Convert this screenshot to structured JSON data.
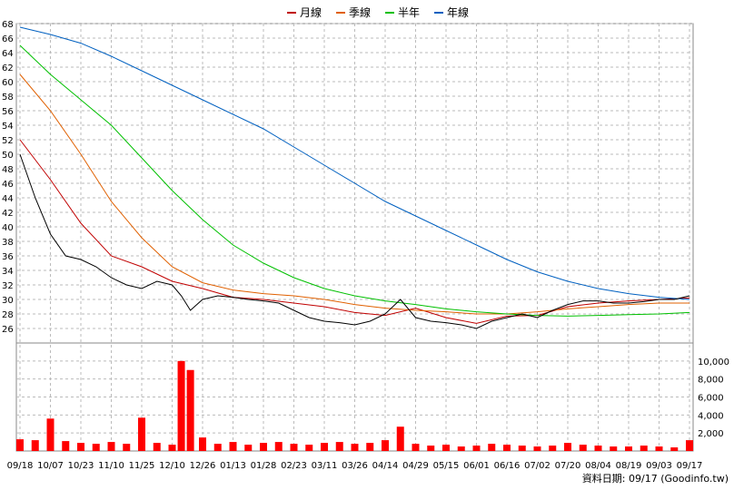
{
  "chart_data": {
    "type": "line",
    "legend": {
      "placement": "top-center",
      "items": [
        {
          "label": "月線",
          "color": "#c00000"
        },
        {
          "label": "季線",
          "color": "#e06000"
        },
        {
          "label": "半年",
          "color": "#00c000"
        },
        {
          "label": "年線",
          "color": "#0060c0"
        }
      ]
    },
    "x_ticks": [
      "09/18",
      "10/07",
      "10/23",
      "11/10",
      "11/25",
      "12/10",
      "12/26",
      "01/13",
      "01/28",
      "02/23",
      "03/11",
      "03/26",
      "04/14",
      "04/29",
      "05/15",
      "06/01",
      "06/16",
      "07/02",
      "07/20",
      "08/04",
      "08/19",
      "09/03",
      "09/17"
    ],
    "price_axis": {
      "min": 24,
      "max": 68,
      "ticks": [
        26,
        28,
        30,
        32,
        34,
        36,
        38,
        40,
        42,
        44,
        46,
        48,
        50,
        52,
        54,
        56,
        58,
        60,
        62,
        64,
        66,
        68
      ]
    },
    "volume_axis": {
      "min": 0,
      "max": 12000,
      "ticks": [
        "2,000",
        "4,000",
        "6,000",
        "8,000",
        "10,000"
      ],
      "tick_values": [
        2000,
        4000,
        6000,
        8000,
        10000
      ]
    },
    "grid": true,
    "series": [
      {
        "name": "月線",
        "color": "#c00000",
        "x": [
          0,
          1,
          2,
          3,
          4,
          5,
          6,
          7,
          8,
          9,
          10,
          11,
          12,
          13,
          14,
          15,
          16,
          17,
          18,
          19,
          20,
          21,
          22
        ],
        "values": [
          52,
          46.5,
          40.5,
          36,
          34.5,
          32.5,
          31.5,
          30.3,
          30,
          29.5,
          29,
          28.2,
          27.8,
          28.8,
          27.5,
          26.7,
          27.7,
          27.8,
          29,
          29.5,
          29.8,
          30,
          30.2
        ]
      },
      {
        "name": "季線",
        "color": "#e06000",
        "x": [
          0,
          1,
          2,
          3,
          4,
          5,
          6,
          7,
          8,
          9,
          10,
          11,
          12,
          13,
          14,
          15,
          16,
          17,
          18,
          19,
          20,
          21,
          22
        ],
        "values": [
          61,
          56,
          50,
          43.5,
          38.5,
          34.5,
          32.3,
          31.3,
          30.8,
          30.5,
          30,
          29.3,
          28.8,
          28.5,
          28.3,
          28,
          28,
          28.3,
          28.7,
          29,
          29.3,
          29.5,
          29.5
        ]
      },
      {
        "name": "半年",
        "color": "#00c000",
        "x": [
          0,
          1,
          2,
          3,
          4,
          5,
          6,
          7,
          8,
          9,
          10,
          11,
          12,
          13,
          14,
          15,
          16,
          17,
          18,
          19,
          20,
          21,
          22
        ],
        "values": [
          65,
          61,
          57.5,
          54,
          49.5,
          45,
          41,
          37.5,
          35,
          33,
          31.5,
          30.5,
          29.8,
          29.3,
          28.7,
          28.3,
          28,
          27.8,
          27.7,
          27.8,
          27.9,
          28,
          28.2
        ]
      },
      {
        "name": "年線",
        "color": "#0060c0",
        "x": [
          0,
          1,
          2,
          3,
          4,
          5,
          6,
          7,
          8,
          9,
          10,
          11,
          12,
          13,
          14,
          15,
          16,
          17,
          18,
          19,
          20,
          21,
          22
        ],
        "values": [
          67.5,
          66.5,
          65.3,
          63.5,
          61.5,
          59.5,
          57.5,
          55.5,
          53.5,
          51,
          48.5,
          46,
          43.5,
          41.5,
          39.5,
          37.5,
          35.5,
          33.8,
          32.5,
          31.5,
          30.8,
          30.3,
          30
        ]
      },
      {
        "name": "",
        "color": "#000000",
        "x": [
          0,
          0.5,
          1,
          1.5,
          2,
          2.5,
          3,
          3.5,
          4,
          4.5,
          5,
          5.3,
          5.6,
          6,
          6.5,
          7,
          7.5,
          8,
          8.5,
          9,
          9.5,
          10,
          10.5,
          11,
          11.5,
          12,
          12.5,
          13,
          13.5,
          14,
          14.5,
          15,
          15.5,
          16,
          16.5,
          17,
          17.5,
          18,
          18.5,
          19,
          19.5,
          20,
          20.5,
          21,
          21.5,
          22
        ],
        "values": [
          50,
          44,
          39,
          36,
          35.5,
          34.5,
          33,
          32,
          31.5,
          32.5,
          32,
          30.5,
          28.5,
          30,
          30.5,
          30.3,
          30,
          29.8,
          29.5,
          28.5,
          27.5,
          27,
          26.8,
          26.5,
          27,
          28,
          30,
          27.5,
          27,
          26.8,
          26.5,
          26,
          27,
          27.5,
          28,
          27.5,
          28.5,
          29.3,
          29.8,
          29.8,
          29.5,
          29.5,
          29.7,
          30,
          30,
          30.5
        ]
      }
    ],
    "volume": {
      "color": "#ff0000",
      "x": [
        0,
        0.5,
        1,
        1.5,
        2,
        2.5,
        3,
        3.5,
        4,
        4.5,
        5,
        5.3,
        5.6,
        6,
        6.5,
        7,
        7.5,
        8,
        8.5,
        9,
        9.5,
        10,
        10.5,
        11,
        11.5,
        12,
        12.5,
        13,
        13.5,
        14,
        14.5,
        15,
        15.5,
        16,
        16.5,
        17,
        17.5,
        18,
        18.5,
        19,
        19.5,
        20,
        20.5,
        21,
        21.5,
        22
      ],
      "values": [
        1300,
        1200,
        3600,
        1100,
        900,
        800,
        1000,
        800,
        3700,
        900,
        700,
        10000,
        9000,
        1500,
        800,
        1000,
        700,
        900,
        1000,
        800,
        700,
        900,
        1000,
        800,
        900,
        1200,
        2700,
        800,
        600,
        700,
        500,
        600,
        800,
        700,
        600,
        500,
        600,
        900,
        700,
        600,
        500,
        500,
        600,
        500,
        400,
        1200
      ]
    },
    "x_range": [
      0,
      22
    ],
    "x_unit": "tick index along the printed date axis",
    "xlabel": "",
    "ylabel": "",
    "title": ""
  },
  "source_text": "資料日期: 09/17  (Goodinfo.tw)"
}
